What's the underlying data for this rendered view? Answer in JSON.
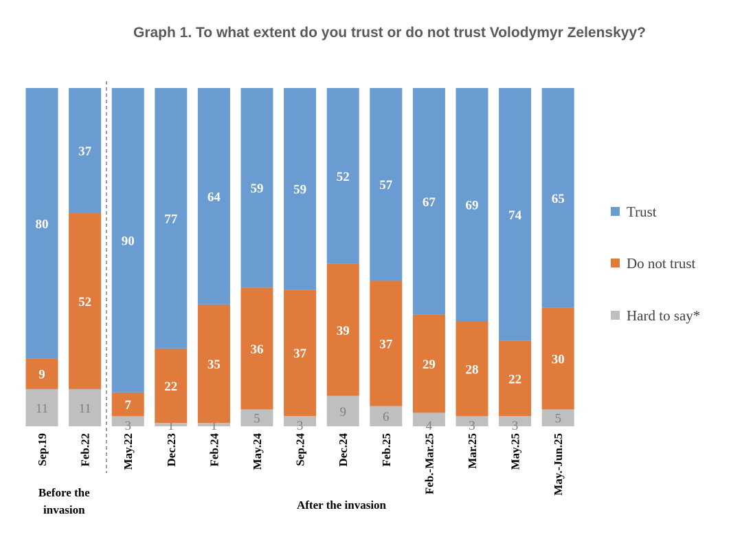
{
  "chart_data": {
    "type": "bar",
    "stacked": true,
    "percent_stacked": true,
    "title": "Graph 1. To what extent do you trust or do not trust Volodymyr Zelenskyy?",
    "categories": [
      "Sep.19",
      "Feb.22",
      "May.22",
      "Dec.23",
      "Feb.24",
      "May.24",
      "Sep.24",
      "Dec.24",
      "Feb.25",
      "Feb.-Mar.25",
      "Mar.25",
      "May.25",
      "May.-Jun.25"
    ],
    "series": [
      {
        "name": "Hard to say*",
        "color": "#bfbfbf",
        "values": [
          11,
          11,
          3,
          1,
          1,
          5,
          3,
          9,
          6,
          4,
          3,
          3,
          5
        ]
      },
      {
        "name": "Do not trust",
        "color": "#e07b3c",
        "values": [
          9,
          52,
          7,
          22,
          35,
          36,
          37,
          39,
          37,
          29,
          28,
          22,
          30
        ]
      },
      {
        "name": "Trust",
        "color": "#6a9bd1",
        "values": [
          80,
          37,
          90,
          77,
          64,
          59,
          59,
          52,
          57,
          67,
          69,
          74,
          65
        ]
      }
    ],
    "legend": {
      "position": "right",
      "order": [
        "Trust",
        "Do not trust",
        "Hard to say*"
      ]
    },
    "groups": [
      {
        "label_lines": [
          "Before the",
          "invasion"
        ],
        "from": 0,
        "to": 1
      },
      {
        "label_lines": [
          "After the invasion"
        ],
        "from": 2,
        "to": 12
      }
    ],
    "divider_after_index": 1,
    "grid": false
  }
}
